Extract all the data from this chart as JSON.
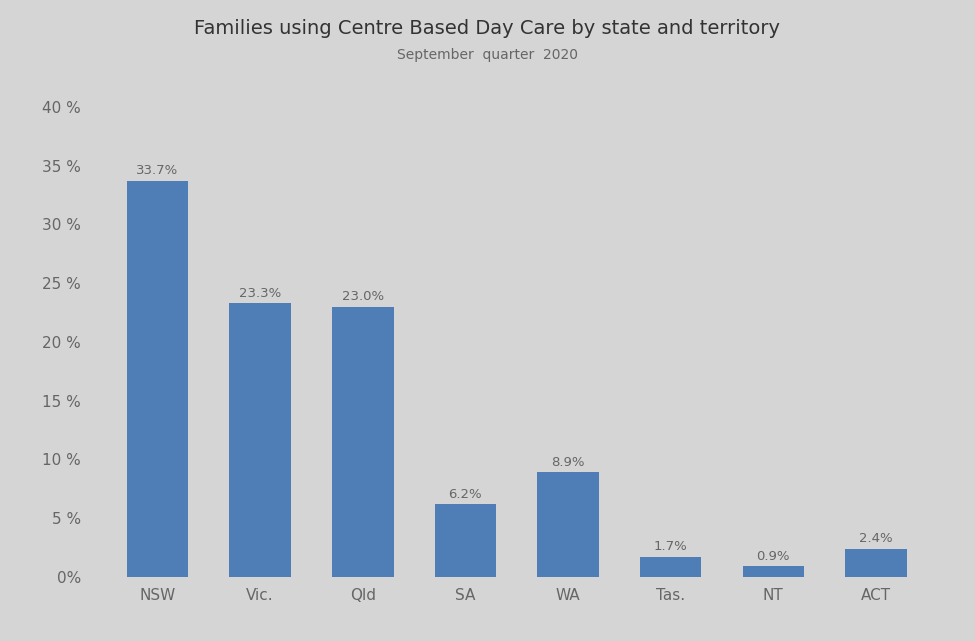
{
  "title": "Families using Centre Based Day Care by state and territory",
  "subtitle": "September  quarter  2020",
  "categories": [
    "NSW",
    "Vic.",
    "Qld",
    "SA",
    "WA",
    "Tas.",
    "NT",
    "ACT"
  ],
  "values": [
    33.7,
    23.3,
    23.0,
    6.2,
    8.9,
    1.7,
    0.9,
    2.4
  ],
  "bar_color": "#4f7db5",
  "background_color": "#d5d5d5",
  "ylim": [
    0,
    42
  ],
  "yticks": [
    0,
    5,
    10,
    15,
    20,
    25,
    30,
    35,
    40
  ],
  "title_fontsize": 14,
  "subtitle_fontsize": 10,
  "label_fontsize": 11,
  "tick_fontsize": 11,
  "bar_label_fontsize": 9.5,
  "bar_width": 0.6
}
